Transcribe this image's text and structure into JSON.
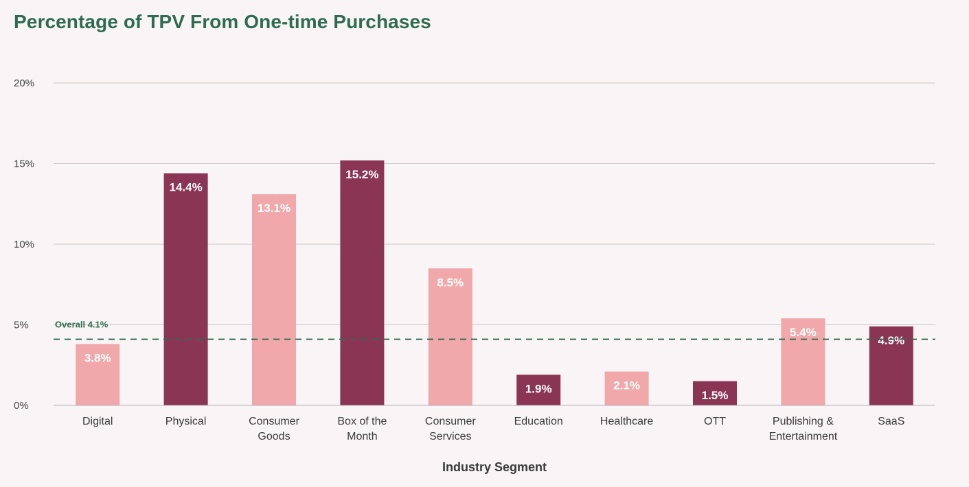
{
  "colors": {
    "dark": "#8b3554",
    "light": "#f0a8aa",
    "grid": "#cfc6c8",
    "reference": "#2e6b52",
    "title": "#2e6b52"
  },
  "chart_data": {
    "type": "bar",
    "title": "Percentage of TPV From One-time Purchases",
    "xlabel": "Industry Segment",
    "ylabel": "",
    "ylim": [
      0,
      20
    ],
    "yticks": [
      0,
      5,
      10,
      15,
      20
    ],
    "ytick_labels": [
      "0%",
      "5%",
      "10%",
      "15%",
      "20%"
    ],
    "grid": true,
    "categories": [
      [
        "Digital"
      ],
      [
        "Physical"
      ],
      [
        "Consumer",
        "Goods"
      ],
      [
        "Box of the",
        "Month"
      ],
      [
        "Consumer",
        "Services"
      ],
      [
        "Education"
      ],
      [
        "Healthcare"
      ],
      [
        "OTT"
      ],
      [
        "Publishing &",
        "Entertainment"
      ],
      [
        "SaaS"
      ]
    ],
    "values": [
      3.8,
      14.4,
      13.1,
      15.2,
      8.5,
      1.9,
      2.1,
      1.5,
      5.4,
      4.9
    ],
    "value_labels": [
      "3.8%",
      "14.4%",
      "13.1%",
      "15.2%",
      "8.5%",
      "1.9%",
      "2.1%",
      "1.5%",
      "5.4%",
      "4.9%"
    ],
    "bar_shades": [
      "light",
      "dark",
      "light",
      "dark",
      "light",
      "dark",
      "light",
      "dark",
      "light",
      "dark"
    ],
    "reference_line": {
      "value": 4.1,
      "label": "Overall 4.1%",
      "style": "dashed"
    }
  }
}
